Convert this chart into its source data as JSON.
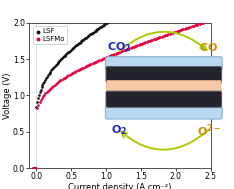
{
  "xlabel": "Current density (A cm⁻²)",
  "ylabel": "Voltage (V)",
  "xlim": [
    -0.1,
    2.5
  ],
  "ylim": [
    0.0,
    2.0
  ],
  "xticks": [
    0.0,
    0.5,
    1.0,
    1.5,
    2.0,
    2.5
  ],
  "yticks": [
    0.0,
    0.5,
    1.0,
    1.5,
    2.0
  ],
  "lsf_color": "#111111",
  "lsfmo_color": "#e8003c",
  "background": "#ffffff",
  "co2_color": "#2222cc",
  "co_color": "#c8900a",
  "o2_color": "#2222cc",
  "o2minus_color": "#c8900a",
  "arrow_color": "#aacc00"
}
